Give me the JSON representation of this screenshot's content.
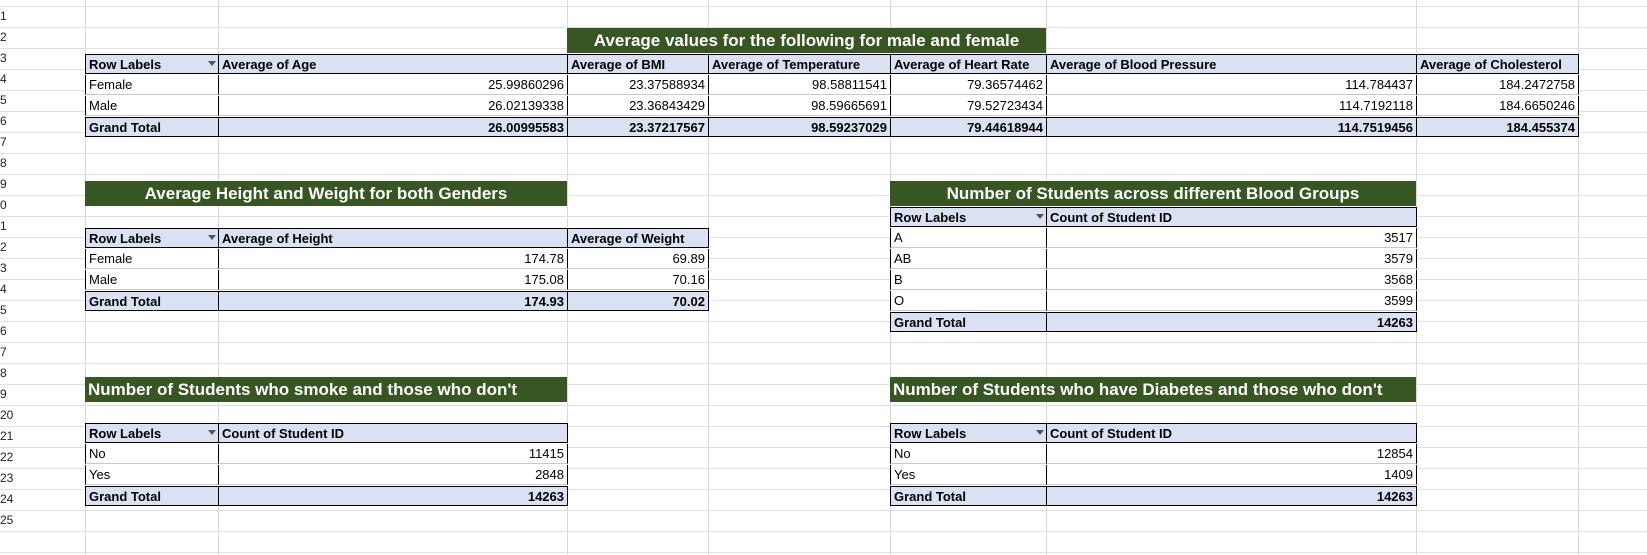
{
  "row_numbers": [
    "1",
    "2",
    "3",
    "4",
    "5",
    "6",
    "7",
    "8",
    "9",
    "0",
    "1",
    "2",
    "3",
    "4",
    "5",
    "6",
    "7",
    "8",
    "9",
    "20",
    "21",
    "22",
    "23",
    "24",
    "25"
  ],
  "pivot1": {
    "title": "Average values for the following for male and female",
    "headers": [
      "Row Labels",
      "Average of Age",
      "Average of BMI",
      "Average of Temperature",
      "Average of Heart Rate",
      "Average of Blood Pressure",
      "Average of Cholesterol"
    ],
    "rows": [
      [
        "Female",
        "25.99860296",
        "23.37588934",
        "98.58811541",
        "79.36574462",
        "114.784437",
        "184.2472758"
      ],
      [
        "Male",
        "26.02139338",
        "23.36843429",
        "98.59665691",
        "79.52723434",
        "114.7192118",
        "184.6650246"
      ]
    ],
    "total": [
      "Grand Total",
      "26.00995583",
      "23.37217567",
      "98.59237029",
      "79.44618944",
      "114.7519456",
      "184.455374"
    ]
  },
  "pivot2": {
    "title": "Average Height and Weight for both Genders",
    "headers": [
      "Row Labels",
      "Average of Height",
      "Average of Weight"
    ],
    "rows": [
      [
        "Female",
        "174.78",
        "69.89"
      ],
      [
        "Male",
        "175.08",
        "70.16"
      ]
    ],
    "total": [
      "Grand Total",
      "174.93",
      "70.02"
    ]
  },
  "pivot3": {
    "title": "Number of Students across different Blood Groups",
    "headers": [
      "Row Labels",
      "Count of Student ID"
    ],
    "rows": [
      [
        "A",
        "3517"
      ],
      [
        "AB",
        "3579"
      ],
      [
        "B",
        "3568"
      ],
      [
        "O",
        "3599"
      ]
    ],
    "total": [
      "Grand Total",
      "14263"
    ]
  },
  "pivot4": {
    "title": "Number of Students who smoke and those who don't",
    "headers": [
      "Row Labels",
      "Count of Student ID"
    ],
    "rows": [
      [
        "No",
        "11415"
      ],
      [
        "Yes",
        "2848"
      ]
    ],
    "total": [
      "Grand Total",
      "14263"
    ]
  },
  "pivot5": {
    "title": "Number of Students who have Diabetes and those who don't",
    "headers": [
      "Row Labels",
      "Count of Student ID"
    ],
    "rows": [
      [
        "No",
        "12854"
      ],
      [
        "Yes",
        "1409"
      ]
    ],
    "total": [
      "Grand Total",
      "14263"
    ]
  },
  "colors": {
    "banner": "#375623",
    "header_fill": "#d9e1f2"
  }
}
